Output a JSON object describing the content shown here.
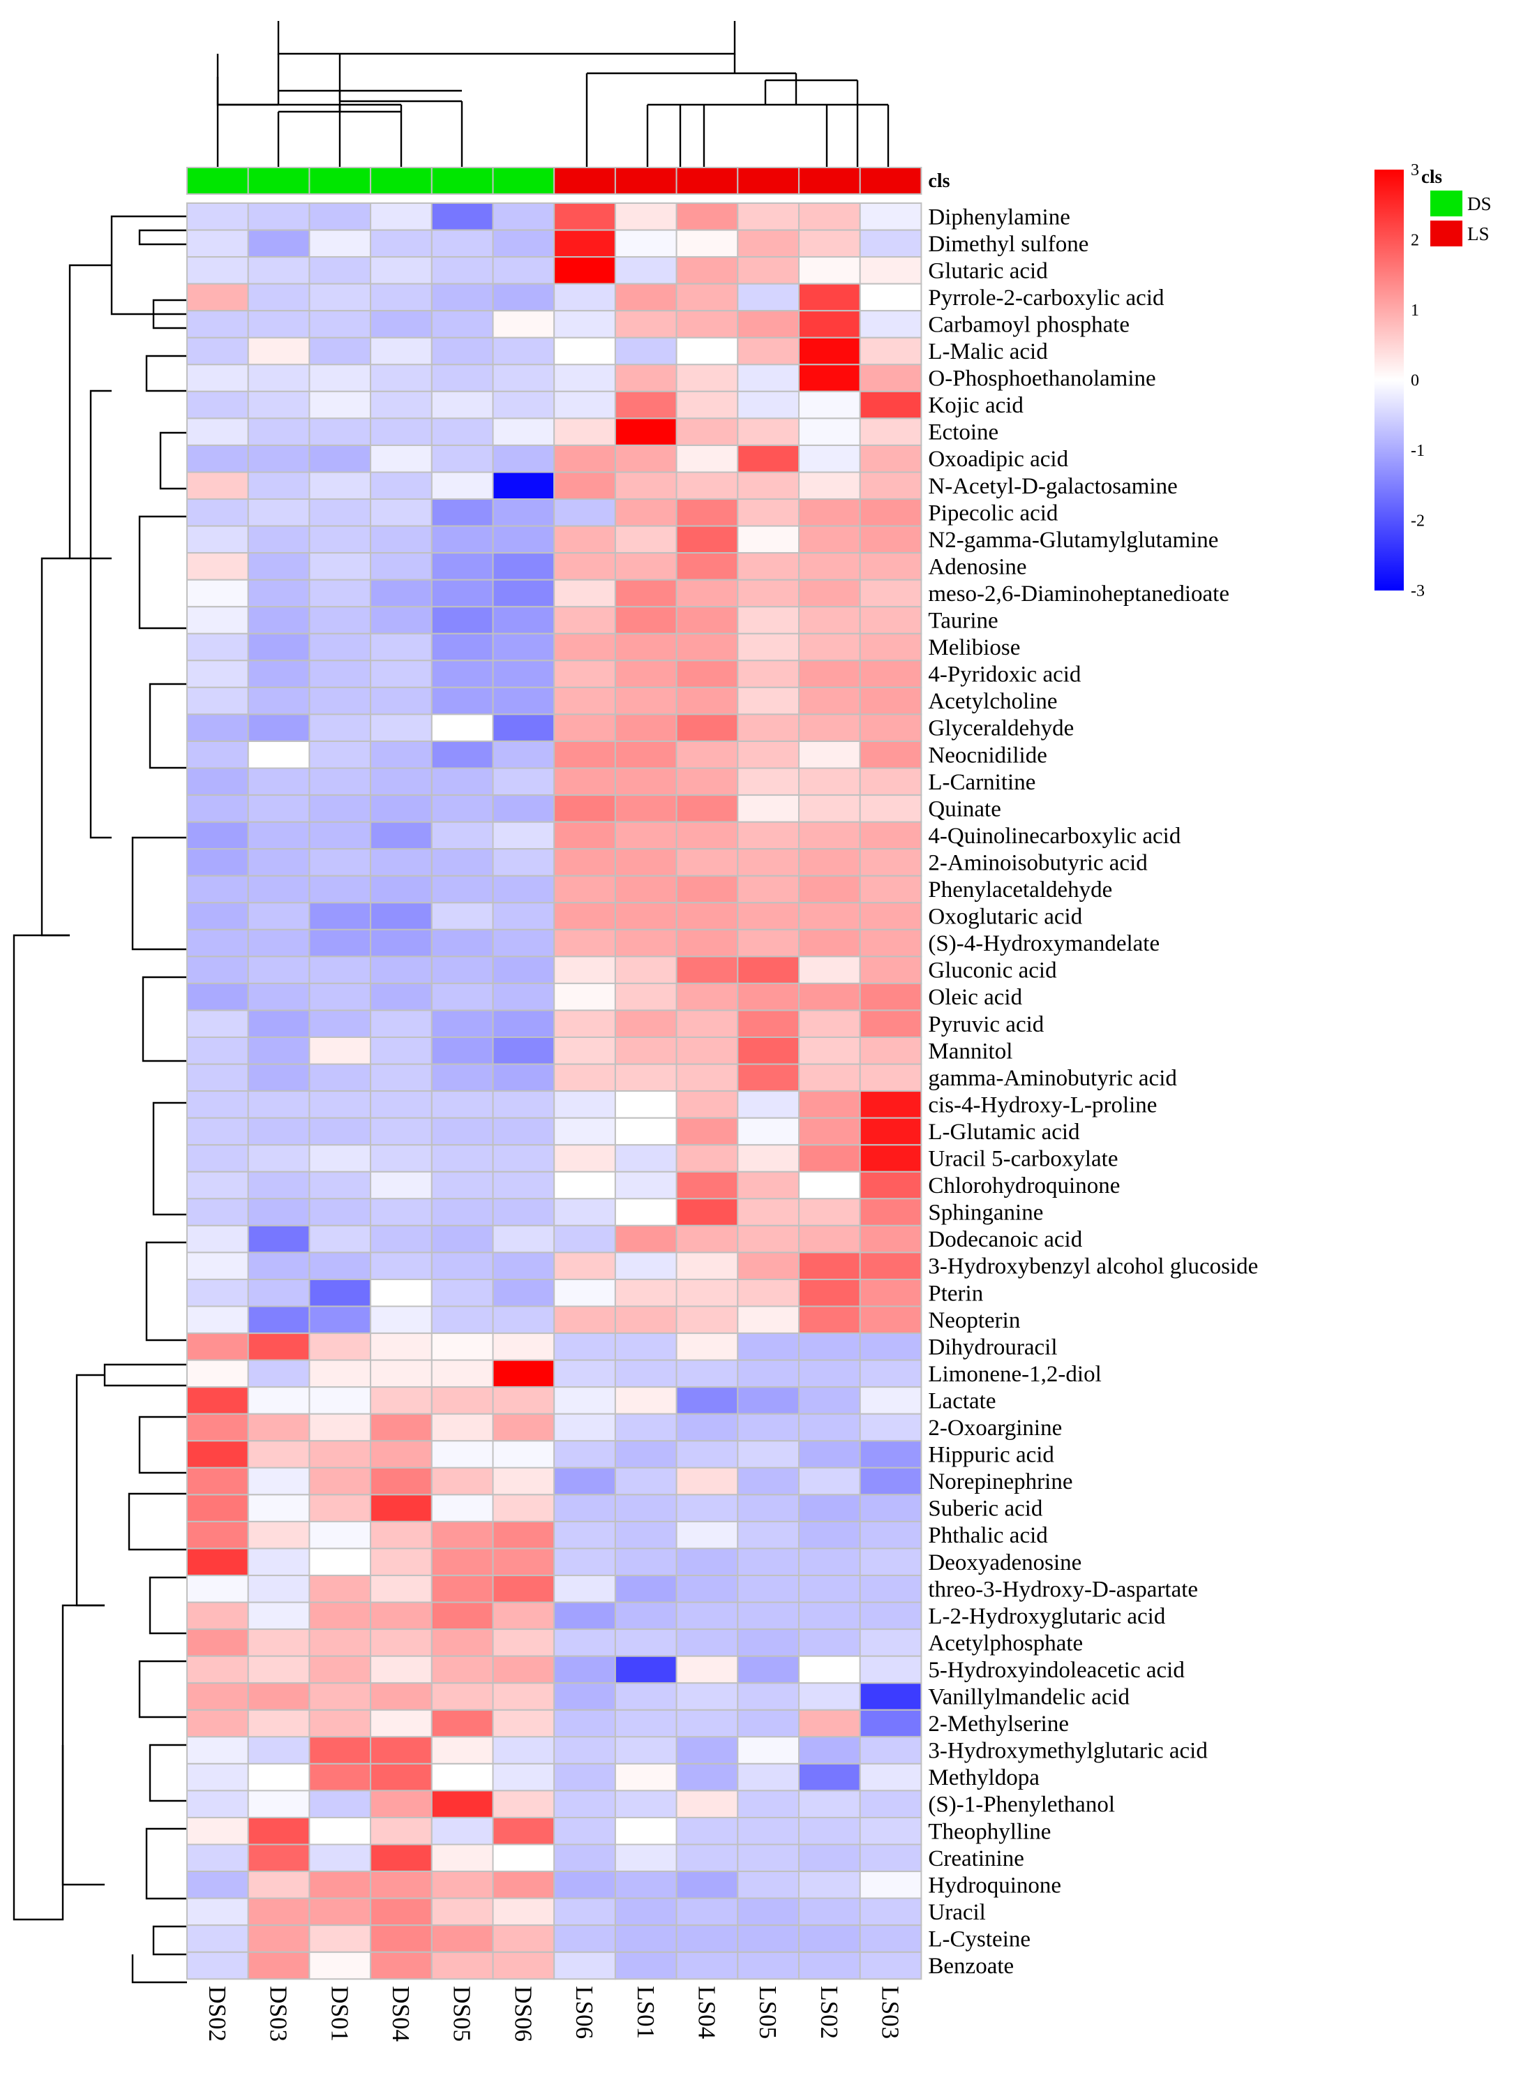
{
  "chart_data": {
    "type": "heatmap",
    "title": "",
    "annotation_label": "cls",
    "colorbar": {
      "min": -3,
      "max": 3,
      "ticks": [
        "3",
        "2",
        "1",
        "0",
        "-1",
        "-2",
        "-3"
      ]
    },
    "legend": {
      "title": "cls",
      "entries": [
        {
          "label": "DS",
          "color": "#00e600"
        },
        {
          "label": "LS",
          "color": "#ee0000"
        }
      ]
    },
    "samples": [
      "DS02",
      "DS03",
      "DS01",
      "DS04",
      "DS05",
      "DS06",
      "LS06",
      "LS01",
      "LS04",
      "LS05",
      "LS02",
      "LS03"
    ],
    "sample_groups": [
      "DS",
      "DS",
      "DS",
      "DS",
      "DS",
      "DS",
      "LS",
      "LS",
      "LS",
      "LS",
      "LS",
      "LS"
    ],
    "colors": {
      "low": "#0000ff",
      "mid": "#ffffff",
      "high": "#ff0000",
      "DS": "#00e600",
      "LS": "#ee0000",
      "grid": "#c0c0c0"
    },
    "metabolites": [
      "Diphenylamine",
      "Dimethyl sulfone",
      "Glutaric acid",
      "Pyrrole-2-carboxylic acid",
      "Carbamoyl phosphate",
      "L-Malic acid",
      "O-Phosphoethanolamine",
      "Kojic acid",
      "Ectoine",
      "Oxoadipic acid",
      "N-Acetyl-D-galactosamine",
      "Pipecolic acid",
      "N2-gamma-Glutamylglutamine",
      "Adenosine",
      "meso-2,6-Diaminoheptanedioate",
      "Taurine",
      "Melibiose",
      "4-Pyridoxic acid",
      "Acetylcholine",
      "Glyceraldehyde",
      "Neocnidilide",
      "L-Carnitine",
      "Quinate",
      "4-Quinolinecarboxylic acid",
      "2-Aminoisobutyric acid",
      "Phenylacetaldehyde",
      "Oxoglutaric acid",
      "(S)-4-Hydroxymandelate",
      "Gluconic acid",
      "Oleic acid",
      "Pyruvic acid",
      "Mannitol",
      "gamma-Aminobutyric acid",
      "cis-4-Hydroxy-L-proline",
      "L-Glutamic acid",
      "Uracil 5-carboxylate",
      "Chlorohydroquinone",
      "Sphinganine",
      "Dodecanoic acid",
      "3-Hydroxybenzyl alcohol glucoside",
      "Pterin",
      "Neopterin",
      "Dihydrouracil",
      "Limonene-1,2-diol",
      "Lactate",
      "2-Oxoarginine",
      "Hippuric acid",
      "Norepinephrine",
      "Suberic acid",
      "Phthalic acid",
      "Deoxyadenosine",
      "threo-3-Hydroxy-D-aspartate",
      "L-2-Hydroxyglutaric acid",
      "Acetylphosphate",
      "5-Hydroxyindoleacetic acid",
      "Vanillylmandelic acid",
      "2-Methylserine",
      "3-Hydroxymethylglutaric acid",
      "Methyldopa",
      "(S)-1-Phenylethanol",
      "Theophylline",
      "Creatinine",
      "Hydroquinone",
      "Uracil",
      "L-Cysteine",
      "Benzoate"
    ],
    "values": [
      [
        -0.5,
        -0.6,
        -0.7,
        -0.3,
        -1.6,
        -0.7,
        2.0,
        0.3,
        1.2,
        0.6,
        0.7,
        -0.2
      ],
      [
        -0.4,
        -1.0,
        -0.2,
        -0.6,
        -0.6,
        -0.8,
        2.7,
        -0.1,
        0.1,
        0.9,
        0.6,
        -0.5
      ],
      [
        -0.4,
        -0.5,
        -0.6,
        -0.4,
        -0.6,
        -0.6,
        3.0,
        -0.4,
        1.0,
        0.8,
        0.1,
        0.2
      ],
      [
        0.9,
        -0.6,
        -0.5,
        -0.6,
        -0.8,
        -0.9,
        -0.4,
        1.1,
        0.9,
        -0.5,
        2.2,
        0.0
      ],
      [
        -0.6,
        -0.6,
        -0.6,
        -0.8,
        -0.7,
        0.1,
        -0.3,
        0.8,
        0.9,
        1.1,
        2.3,
        -0.3
      ],
      [
        -0.6,
        0.2,
        -0.7,
        -0.3,
        -0.7,
        -0.6,
        0.0,
        -0.6,
        0.0,
        0.8,
        2.9,
        0.5
      ],
      [
        -0.3,
        -0.4,
        -0.3,
        -0.5,
        -0.6,
        -0.5,
        -0.3,
        0.9,
        0.5,
        -0.3,
        2.9,
        1.0
      ],
      [
        -0.6,
        -0.5,
        -0.2,
        -0.5,
        -0.3,
        -0.5,
        -0.3,
        1.6,
        0.5,
        -0.3,
        -0.1,
        2.2
      ],
      [
        -0.3,
        -0.6,
        -0.6,
        -0.6,
        -0.6,
        -0.2,
        0.4,
        3.0,
        0.8,
        0.6,
        -0.1,
        0.5
      ],
      [
        -0.8,
        -0.8,
        -0.9,
        -0.2,
        -0.6,
        -0.8,
        1.1,
        1.0,
        0.2,
        2.0,
        -0.2,
        0.9
      ],
      [
        0.6,
        -0.6,
        -0.4,
        -0.6,
        -0.2,
        -2.9,
        1.2,
        0.8,
        0.7,
        0.7,
        0.3,
        0.8
      ],
      [
        -0.6,
        -0.5,
        -0.6,
        -0.5,
        -1.3,
        -1.0,
        -0.7,
        1.0,
        1.5,
        0.7,
        1.1,
        1.2
      ],
      [
        -0.4,
        -0.7,
        -0.6,
        -0.7,
        -1.0,
        -1.0,
        0.9,
        0.6,
        1.8,
        0.1,
        1.0,
        1.1
      ],
      [
        0.4,
        -0.8,
        -0.5,
        -0.7,
        -1.2,
        -1.4,
        0.9,
        0.9,
        1.5,
        0.8,
        0.9,
        0.9
      ],
      [
        -0.1,
        -0.8,
        -0.6,
        -1.0,
        -1.2,
        -1.4,
        0.4,
        1.4,
        1.0,
        0.8,
        1.0,
        0.7
      ],
      [
        -0.2,
        -0.9,
        -0.7,
        -0.9,
        -1.4,
        -1.2,
        0.8,
        1.4,
        1.2,
        0.5,
        0.8,
        0.8
      ],
      [
        -0.5,
        -1.0,
        -0.7,
        -0.6,
        -1.2,
        -1.1,
        1.0,
        1.1,
        1.1,
        0.5,
        0.8,
        0.9
      ],
      [
        -0.4,
        -0.9,
        -0.7,
        -0.6,
        -1.1,
        -1.1,
        0.8,
        1.1,
        1.3,
        0.7,
        1.1,
        1.1
      ],
      [
        -0.5,
        -0.8,
        -0.7,
        -0.7,
        -1.1,
        -1.1,
        0.9,
        1.0,
        1.1,
        0.5,
        1.0,
        1.1
      ],
      [
        -0.9,
        -1.1,
        -0.6,
        -0.5,
        0.0,
        -1.6,
        1.0,
        1.2,
        1.6,
        0.8,
        0.9,
        1.0
      ],
      [
        -0.7,
        0.0,
        -0.6,
        -0.8,
        -1.3,
        -0.8,
        1.3,
        1.3,
        0.9,
        0.7,
        0.2,
        1.2
      ],
      [
        -0.9,
        -0.7,
        -0.7,
        -0.8,
        -0.8,
        -0.6,
        1.1,
        1.1,
        1.0,
        0.5,
        0.6,
        0.7
      ],
      [
        -0.8,
        -0.7,
        -0.8,
        -0.9,
        -0.8,
        -0.9,
        1.5,
        1.3,
        1.4,
        0.2,
        0.5,
        0.5
      ],
      [
        -1.1,
        -0.8,
        -0.8,
        -1.2,
        -0.6,
        -0.4,
        1.2,
        1.0,
        1.0,
        0.8,
        0.9,
        1.0
      ],
      [
        -1.0,
        -0.8,
        -0.7,
        -0.8,
        -0.8,
        -0.6,
        1.1,
        1.1,
        0.9,
        0.9,
        1.0,
        0.9
      ],
      [
        -0.8,
        -0.8,
        -0.8,
        -0.9,
        -0.8,
        -0.8,
        1.0,
        1.1,
        1.2,
        0.9,
        1.1,
        0.9
      ],
      [
        -0.9,
        -0.7,
        -1.2,
        -1.3,
        -0.5,
        -0.7,
        1.1,
        1.1,
        1.1,
        1.0,
        1.0,
        1.0
      ],
      [
        -0.8,
        -0.8,
        -1.1,
        -1.1,
        -0.9,
        -0.8,
        0.9,
        1.0,
        1.1,
        0.9,
        1.1,
        1.0
      ],
      [
        -0.8,
        -0.7,
        -0.7,
        -0.8,
        -0.8,
        -0.9,
        0.3,
        0.6,
        1.6,
        1.8,
        0.3,
        1.0
      ],
      [
        -1.0,
        -0.8,
        -0.7,
        -0.9,
        -0.7,
        -0.8,
        0.1,
        0.6,
        1.0,
        1.2,
        1.2,
        1.4
      ],
      [
        -0.5,
        -1.0,
        -0.8,
        -0.6,
        -1.0,
        -1.1,
        0.6,
        1.0,
        0.8,
        1.5,
        0.7,
        1.4
      ],
      [
        -0.6,
        -0.9,
        0.2,
        -0.6,
        -1.1,
        -1.4,
        0.5,
        0.8,
        0.8,
        1.8,
        0.6,
        0.8
      ],
      [
        -0.6,
        -0.9,
        -0.7,
        -0.6,
        -0.9,
        -1.0,
        0.6,
        0.6,
        0.7,
        1.7,
        0.7,
        0.7
      ],
      [
        -0.6,
        -0.6,
        -0.6,
        -0.6,
        -0.6,
        -0.6,
        -0.3,
        0.0,
        0.8,
        -0.3,
        1.2,
        2.7
      ],
      [
        -0.6,
        -0.7,
        -0.7,
        -0.6,
        -0.7,
        -0.7,
        -0.2,
        0.0,
        1.2,
        -0.1,
        1.2,
        2.7
      ],
      [
        -0.6,
        -0.5,
        -0.3,
        -0.5,
        -0.6,
        -0.6,
        0.3,
        -0.4,
        0.8,
        0.3,
        1.4,
        2.7
      ],
      [
        -0.5,
        -0.7,
        -0.6,
        -0.2,
        -0.6,
        -0.6,
        0.0,
        -0.3,
        1.6,
        0.8,
        0.0,
        1.9
      ],
      [
        -0.6,
        -0.8,
        -0.7,
        -0.6,
        -0.7,
        -0.7,
        -0.4,
        0.0,
        2.0,
        0.7,
        0.7,
        1.5
      ],
      [
        -0.3,
        -1.6,
        -0.5,
        -0.7,
        -0.8,
        -0.4,
        -0.6,
        1.2,
        0.9,
        0.8,
        0.9,
        1.2
      ],
      [
        -0.2,
        -0.8,
        -0.8,
        -0.6,
        -0.7,
        -0.8,
        0.6,
        -0.3,
        0.3,
        1.0,
        1.8,
        1.7
      ],
      [
        -0.5,
        -0.7,
        -1.7,
        0.0,
        -0.6,
        -0.9,
        -0.1,
        0.5,
        0.5,
        0.6,
        1.8,
        1.3
      ],
      [
        -0.2,
        -1.5,
        -1.3,
        -0.2,
        -0.6,
        -0.6,
        0.8,
        0.8,
        0.6,
        0.2,
        1.6,
        1.3
      ],
      [
        1.3,
        2.0,
        0.6,
        0.2,
        0.1,
        0.2,
        -0.6,
        -0.6,
        0.2,
        -0.8,
        -0.8,
        -0.8
      ],
      [
        0.1,
        -0.6,
        0.2,
        0.2,
        0.2,
        3.0,
        -0.5,
        -0.6,
        -0.6,
        -0.7,
        -0.7,
        -0.6
      ],
      [
        2.1,
        -0.1,
        -0.1,
        0.6,
        0.7,
        0.7,
        -0.2,
        0.2,
        -1.4,
        -1.1,
        -0.8,
        -0.2
      ],
      [
        1.4,
        0.9,
        0.3,
        1.3,
        0.3,
        1.0,
        -0.3,
        -0.6,
        -0.8,
        -0.7,
        -0.7,
        -0.5
      ],
      [
        2.2,
        0.6,
        0.8,
        1.0,
        -0.1,
        -0.1,
        -0.6,
        -0.8,
        -0.6,
        -0.5,
        -0.9,
        -1.2
      ],
      [
        1.5,
        -0.2,
        0.9,
        1.5,
        0.7,
        0.3,
        -1.1,
        -0.6,
        0.4,
        -0.8,
        -0.5,
        -1.3
      ],
      [
        1.6,
        -0.1,
        0.7,
        2.3,
        -0.1,
        0.5,
        -0.7,
        -0.7,
        -0.6,
        -0.7,
        -0.9,
        -0.8
      ],
      [
        1.5,
        0.4,
        -0.1,
        0.7,
        1.2,
        1.4,
        -0.6,
        -0.7,
        -0.2,
        -0.6,
        -0.8,
        -0.7
      ],
      [
        2.3,
        -0.3,
        0.0,
        0.6,
        1.3,
        1.3,
        -0.6,
        -0.7,
        -0.8,
        -0.7,
        -0.7,
        -0.6
      ],
      [
        -0.1,
        -0.3,
        0.9,
        0.4,
        1.4,
        1.7,
        -0.3,
        -1.0,
        -0.8,
        -0.7,
        -0.7,
        -0.7
      ],
      [
        0.8,
        -0.2,
        1.0,
        1.0,
        1.5,
        0.9,
        -1.1,
        -0.8,
        -0.7,
        -0.7,
        -0.7,
        -0.7
      ],
      [
        1.2,
        0.6,
        0.8,
        0.7,
        1.0,
        0.6,
        -0.6,
        -0.6,
        -0.7,
        -0.8,
        -0.7,
        -0.5
      ],
      [
        0.7,
        0.5,
        0.9,
        0.3,
        0.9,
        1.0,
        -1.0,
        -2.2,
        0.2,
        -1.0,
        0.0,
        -0.4
      ],
      [
        1.0,
        1.1,
        0.8,
        1.0,
        0.7,
        0.6,
        -0.9,
        -0.6,
        -0.5,
        -0.6,
        -0.4,
        -2.3
      ],
      [
        0.9,
        0.5,
        0.8,
        0.2,
        1.6,
        0.5,
        -0.7,
        -0.6,
        -0.6,
        -0.7,
        0.9,
        -1.6
      ],
      [
        -0.2,
        -0.5,
        1.8,
        1.8,
        0.2,
        -0.4,
        -0.6,
        -0.5,
        -0.9,
        -0.1,
        -0.9,
        -0.6
      ],
      [
        -0.3,
        0.0,
        1.6,
        1.8,
        0.0,
        -0.3,
        -0.7,
        0.1,
        -0.9,
        -0.4,
        -1.6,
        -0.3
      ],
      [
        -0.4,
        -0.1,
        -0.6,
        1.1,
        2.4,
        0.5,
        -0.6,
        -0.5,
        0.3,
        -0.6,
        -0.5,
        -0.6
      ],
      [
        0.2,
        2.0,
        0.0,
        0.6,
        -0.4,
        1.8,
        -0.6,
        0.0,
        -0.6,
        -0.6,
        -0.6,
        -0.5
      ],
      [
        -0.5,
        1.8,
        -0.4,
        2.1,
        0.2,
        0.0,
        -0.7,
        -0.3,
        -0.6,
        -0.6,
        -0.7,
        -0.6
      ],
      [
        -0.8,
        0.6,
        1.2,
        1.2,
        0.9,
        1.2,
        -0.9,
        -0.8,
        -1.0,
        -0.6,
        -0.5,
        -0.1
      ],
      [
        -0.3,
        1.1,
        1.1,
        1.4,
        0.6,
        0.3,
        -0.6,
        -0.8,
        -0.7,
        -0.8,
        -0.7,
        -0.6
      ],
      [
        -0.5,
        1.1,
        0.5,
        1.4,
        1.2,
        0.8,
        -0.7,
        -0.8,
        -0.8,
        -0.8,
        -0.8,
        -0.7
      ],
      [
        -0.5,
        1.2,
        0.1,
        1.3,
        0.8,
        0.8,
        -0.4,
        -0.8,
        -0.7,
        -0.7,
        -0.7,
        -0.6
      ]
    ]
  }
}
